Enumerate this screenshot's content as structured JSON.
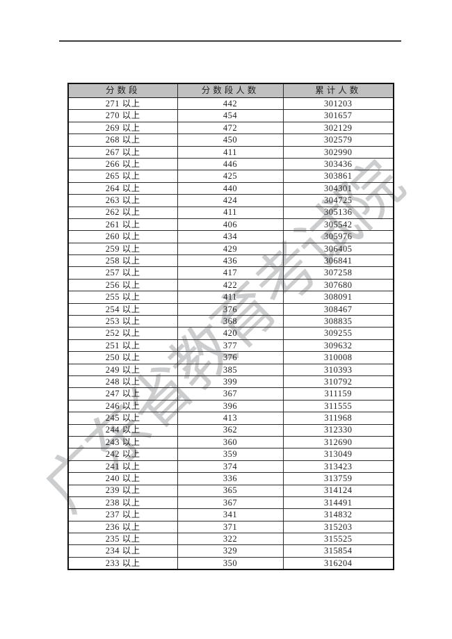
{
  "watermark": {
    "text": "广东省教育考试院",
    "color": "#82878c"
  },
  "table": {
    "headers": [
      "分数段",
      "分数段人数",
      "累计人数"
    ],
    "range_suffix": "以上",
    "rows": [
      {
        "score": "271",
        "count": "442",
        "cumulative": "301203"
      },
      {
        "score": "270",
        "count": "454",
        "cumulative": "301657"
      },
      {
        "score": "269",
        "count": "472",
        "cumulative": "302129"
      },
      {
        "score": "268",
        "count": "450",
        "cumulative": "302579"
      },
      {
        "score": "267",
        "count": "411",
        "cumulative": "302990"
      },
      {
        "score": "266",
        "count": "446",
        "cumulative": "303436"
      },
      {
        "score": "265",
        "count": "425",
        "cumulative": "303861"
      },
      {
        "score": "264",
        "count": "440",
        "cumulative": "304301"
      },
      {
        "score": "263",
        "count": "424",
        "cumulative": "304725"
      },
      {
        "score": "262",
        "count": "411",
        "cumulative": "305136"
      },
      {
        "score": "261",
        "count": "406",
        "cumulative": "305542"
      },
      {
        "score": "260",
        "count": "434",
        "cumulative": "305976"
      },
      {
        "score": "259",
        "count": "429",
        "cumulative": "306405"
      },
      {
        "score": "258",
        "count": "436",
        "cumulative": "306841"
      },
      {
        "score": "257",
        "count": "417",
        "cumulative": "307258"
      },
      {
        "score": "256",
        "count": "422",
        "cumulative": "307680"
      },
      {
        "score": "255",
        "count": "411",
        "cumulative": "308091"
      },
      {
        "score": "254",
        "count": "376",
        "cumulative": "308467"
      },
      {
        "score": "253",
        "count": "368",
        "cumulative": "308835"
      },
      {
        "score": "252",
        "count": "420",
        "cumulative": "309255"
      },
      {
        "score": "251",
        "count": "377",
        "cumulative": "309632"
      },
      {
        "score": "250",
        "count": "376",
        "cumulative": "310008"
      },
      {
        "score": "249",
        "count": "385",
        "cumulative": "310393"
      },
      {
        "score": "248",
        "count": "399",
        "cumulative": "310792"
      },
      {
        "score": "247",
        "count": "367",
        "cumulative": "311159"
      },
      {
        "score": "246",
        "count": "396",
        "cumulative": "311555"
      },
      {
        "score": "245",
        "count": "413",
        "cumulative": "311968"
      },
      {
        "score": "244",
        "count": "362",
        "cumulative": "312330"
      },
      {
        "score": "243",
        "count": "360",
        "cumulative": "312690"
      },
      {
        "score": "242",
        "count": "359",
        "cumulative": "313049"
      },
      {
        "score": "241",
        "count": "374",
        "cumulative": "313423"
      },
      {
        "score": "240",
        "count": "336",
        "cumulative": "313759"
      },
      {
        "score": "239",
        "count": "365",
        "cumulative": "314124"
      },
      {
        "score": "238",
        "count": "367",
        "cumulative": "314491"
      },
      {
        "score": "237",
        "count": "341",
        "cumulative": "314832"
      },
      {
        "score": "236",
        "count": "371",
        "cumulative": "315203"
      },
      {
        "score": "235",
        "count": "322",
        "cumulative": "315525"
      },
      {
        "score": "234",
        "count": "329",
        "cumulative": "315854"
      },
      {
        "score": "233",
        "count": "350",
        "cumulative": "316204"
      }
    ]
  }
}
